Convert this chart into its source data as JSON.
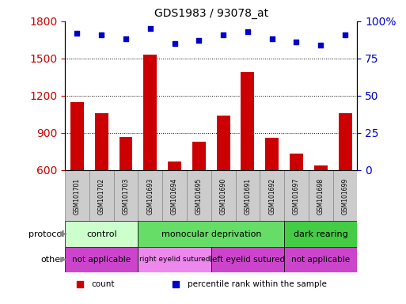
{
  "title": "GDS1983 / 93078_at",
  "samples": [
    "GSM101701",
    "GSM101702",
    "GSM101703",
    "GSM101693",
    "GSM101694",
    "GSM101695",
    "GSM101690",
    "GSM101691",
    "GSM101692",
    "GSM101697",
    "GSM101698",
    "GSM101699"
  ],
  "bar_values": [
    1150,
    1060,
    870,
    1530,
    670,
    830,
    1040,
    1390,
    860,
    730,
    640,
    1060
  ],
  "dot_values": [
    92,
    91,
    88,
    95,
    85,
    87,
    91,
    93,
    88,
    86,
    84,
    91
  ],
  "ylim_left": [
    600,
    1800
  ],
  "ylim_right": [
    0,
    100
  ],
  "yticks_left": [
    600,
    900,
    1200,
    1500,
    1800
  ],
  "yticks_right": [
    0,
    25,
    50,
    75,
    100
  ],
  "bar_color": "#cc0000",
  "dot_color": "#0000cc",
  "protocol_groups": [
    {
      "label": "control",
      "start": 0,
      "end": 3,
      "color": "#ccffcc"
    },
    {
      "label": "monocular deprivation",
      "start": 3,
      "end": 9,
      "color": "#66dd66"
    },
    {
      "label": "dark rearing",
      "start": 9,
      "end": 12,
      "color": "#44cc44"
    }
  ],
  "other_groups": [
    {
      "label": "not applicable",
      "start": 0,
      "end": 3,
      "color": "#cc44cc"
    },
    {
      "label": "right eyelid sutured",
      "start": 3,
      "end": 6,
      "color": "#ee88ee"
    },
    {
      "label": "left eyelid sutured",
      "start": 6,
      "end": 9,
      "color": "#cc44cc"
    },
    {
      "label": "not applicable",
      "start": 9,
      "end": 12,
      "color": "#cc44cc"
    }
  ],
  "legend_items": [
    {
      "label": "count",
      "color": "#cc0000",
      "marker": "s"
    },
    {
      "label": "percentile rank within the sample",
      "color": "#0000cc",
      "marker": "s"
    }
  ],
  "axis_color_left": "#cc0000",
  "axis_color_right": "#0000cc",
  "sample_box_color": "#cccccc",
  "sample_box_edge": "#888888",
  "left_label_color": "#888888"
}
